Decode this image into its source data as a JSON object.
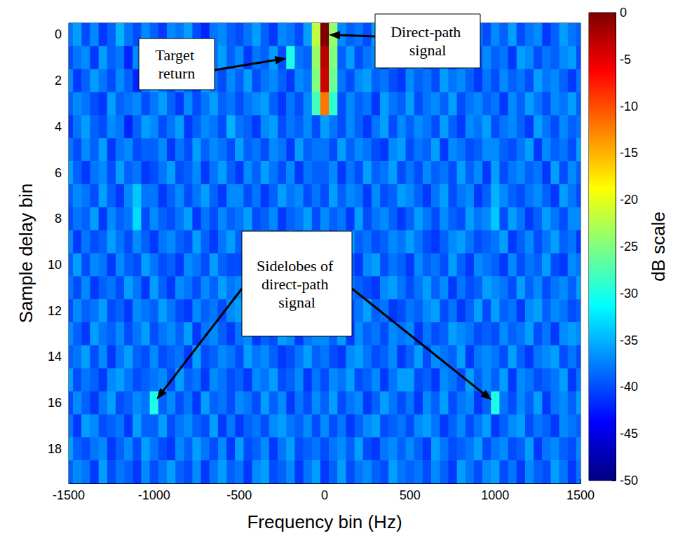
{
  "chart_data": {
    "type": "heatmap",
    "xlabel": "Frequency bin (Hz)",
    "ylabel": "Sample delay bin",
    "x": [
      -1500,
      -1450,
      -1400,
      -1350,
      -1300,
      -1250,
      -1200,
      -1150,
      -1100,
      -1050,
      -1000,
      -950,
      -900,
      -850,
      -800,
      -750,
      -700,
      -650,
      -600,
      -550,
      -500,
      -450,
      -400,
      -350,
      -300,
      -250,
      -200,
      -150,
      -100,
      -50,
      0,
      50,
      100,
      150,
      200,
      250,
      300,
      350,
      400,
      450,
      500,
      550,
      600,
      650,
      700,
      750,
      800,
      850,
      900,
      950,
      1000,
      1050,
      1100,
      1150,
      1200,
      1250,
      1300,
      1350,
      1400,
      1450,
      1500
    ],
    "y": [
      0,
      1,
      2,
      3,
      4,
      5,
      6,
      7,
      8,
      9,
      10,
      11,
      12,
      13,
      14,
      15,
      16,
      17,
      18,
      19
    ],
    "values": [
      [
        -38,
        -36,
        -40,
        -37,
        -41,
        -39,
        -35,
        -38,
        -40,
        -37,
        -39,
        -41,
        -37,
        -38,
        -36,
        -40,
        -42,
        -38,
        -37,
        -39,
        -40,
        -38,
        -36,
        -39,
        -41,
        -37,
        -38,
        -40,
        -36,
        -22,
        0,
        -24,
        -37,
        -39,
        -38,
        -40,
        -36,
        -41,
        -38,
        -37,
        -39,
        -37,
        -40,
        -36,
        -38,
        -41,
        -39,
        -37,
        -38,
        -40,
        -37,
        -39,
        -36,
        -40,
        -38,
        -37,
        -41,
        -39,
        -36,
        -38,
        -39
      ],
      [
        -40,
        -38,
        -37,
        -41,
        -36,
        -39,
        -38,
        -42,
        -37,
        -39,
        -38,
        -40,
        -36,
        -39,
        -41,
        -37,
        -40,
        -38,
        -36,
        -39,
        -37,
        -41,
        -38,
        -39,
        -36,
        -40,
        -30,
        -38,
        -39,
        -24,
        -3,
        -25,
        -39,
        -36,
        -40,
        -38,
        -37,
        -41,
        -36,
        -39,
        -38,
        -36,
        -40,
        -39,
        -37,
        -41,
        -38,
        -36,
        -40,
        -37,
        -39,
        -38,
        -41,
        -36,
        -37,
        -40,
        -38,
        -39,
        -37,
        -36,
        -40
      ],
      [
        -37,
        -41,
        -39,
        -36,
        -38,
        -40,
        -37,
        -39,
        -42,
        -38,
        -36,
        -38,
        -40,
        -37,
        -39,
        -41,
        -36,
        -38,
        -40,
        -37,
        -39,
        -36,
        -40,
        -38,
        -37,
        -39,
        -41,
        -37,
        -38,
        -25,
        -4,
        -26,
        -38,
        -40,
        -37,
        -36,
        -39,
        -38,
        -40,
        -41,
        -37,
        -39,
        -38,
        -40,
        -36,
        -38,
        -37,
        -39,
        -41,
        -38,
        -40,
        -37,
        -39,
        -38,
        -40,
        -36,
        -38,
        -37,
        -39,
        -41,
        -38
      ],
      [
        -39,
        -37,
        -38,
        -40,
        -41,
        -36,
        -39,
        -38,
        -37,
        -40,
        -38,
        -36,
        -39,
        -41,
        -37,
        -40,
        -38,
        -36,
        -39,
        -38,
        -40,
        -38,
        -37,
        -36,
        -39,
        -41,
        -38,
        -40,
        -37,
        -28,
        -12,
        -29,
        -40,
        -37,
        -39,
        -38,
        -41,
        -36,
        -38,
        -39,
        -36,
        -40,
        -38,
        -37,
        -39,
        -36,
        -40,
        -38,
        -37,
        -39,
        -38,
        -41,
        -37,
        -39,
        -36,
        -38,
        -40,
        -37,
        -38,
        -36,
        -39
      ],
      [
        -41,
        -38,
        -36,
        -39,
        -40,
        -37,
        -38,
        -42,
        -39,
        -36,
        -37,
        -40,
        -38,
        -36,
        -41,
        -39,
        -37,
        -38,
        -40,
        -35,
        -38,
        -39,
        -41,
        -37,
        -36,
        -40,
        -38,
        -39,
        -37,
        -40,
        -36,
        -38,
        -40,
        -37,
        -39,
        -41,
        -38,
        -36,
        -40,
        -37,
        -39,
        -37,
        -38,
        -40,
        -36,
        -39,
        -41,
        -37,
        -38,
        -36,
        -40,
        -38,
        -37,
        -39,
        -41,
        -36,
        -38,
        -40,
        -37,
        -39,
        -38
      ],
      [
        -38,
        -40,
        -37,
        -39,
        -36,
        -41,
        -38,
        -37,
        -40,
        -39,
        -39,
        -37,
        -41,
        -38,
        -40,
        -36,
        -39,
        -37,
        -38,
        -40,
        -36,
        -39,
        -38,
        -40,
        -37,
        -38,
        -41,
        -36,
        -39,
        -38,
        -38,
        -40,
        -36,
        -39,
        -37,
        -38,
        -40,
        -41,
        -37,
        -36,
        -40,
        -38,
        -39,
        -36,
        -41,
        -37,
        -38,
        -40,
        -39,
        -37,
        -37,
        -39,
        -40,
        -38,
        -36,
        -41,
        -37,
        -39,
        -38,
        -40,
        -36
      ],
      [
        -36,
        -39,
        -41,
        -38,
        -37,
        -40,
        -36,
        -39,
        -38,
        -41,
        -40,
        -38,
        -36,
        -40,
        -39,
        -37,
        -41,
        -38,
        -36,
        -39,
        -41,
        -37,
        -39,
        -36,
        -38,
        -40,
        -37,
        -41,
        -38,
        -39,
        -39,
        -37,
        -41,
        -38,
        -40,
        -36,
        -39,
        -38,
        -36,
        -40,
        -38,
        -40,
        -37,
        -39,
        -38,
        -40,
        -36,
        -39,
        -37,
        -41,
        -36,
        -40,
        -38,
        -37,
        -39,
        -38,
        -41,
        -36,
        -40,
        -37,
        -39
      ],
      [
        -39,
        -37,
        -38,
        -40,
        -36,
        -39,
        -41,
        -37,
        -34,
        -38,
        -38,
        -41,
        -39,
        -37,
        -40,
        -38,
        -36,
        -39,
        -41,
        -37,
        -37,
        -40,
        -38,
        -41,
        -39,
        -36,
        -38,
        -37,
        -40,
        -38,
        -40,
        -36,
        -39,
        -37,
        -38,
        -41,
        -37,
        -40,
        -39,
        -36,
        -37,
        -39,
        -41,
        -38,
        -36,
        -40,
        -38,
        -37,
        -41,
        -39,
        -35,
        -37,
        -39,
        -40,
        -38,
        -37,
        -39,
        -41,
        -36,
        -38,
        -40
      ],
      [
        -40,
        -38,
        -39,
        -36,
        -41,
        -37,
        -39,
        -38,
        -33,
        -40,
        -37,
        -39,
        -40,
        -38,
        -36,
        -41,
        -38,
        -40,
        -37,
        -39,
        -38,
        -36,
        -40,
        -39,
        -37,
        -41,
        -39,
        -38,
        -36,
        -40,
        -37,
        -39,
        -38,
        -41,
        -36,
        -40,
        -38,
        -37,
        -39,
        -41,
        -39,
        -36,
        -38,
        -40,
        -37,
        -39,
        -40,
        -36,
        -38,
        -37,
        -34,
        -40,
        -36,
        -38,
        -41,
        -39,
        -36,
        -38,
        -40,
        -37,
        -37
      ],
      [
        -37,
        -41,
        -38,
        -40,
        -39,
        -36,
        -38,
        -40,
        -37,
        -39,
        -41,
        -38,
        -37,
        -39,
        -40,
        -36,
        -39,
        -41,
        -38,
        -36,
        -39,
        -40,
        -37,
        -38,
        -41,
        -39,
        -36,
        -40,
        -39,
        -37,
        -38,
        -41,
        -37,
        -36,
        -39,
        -38,
        -40,
        -39,
        -37,
        -38,
        -36,
        -38,
        -40,
        -41,
        -39,
        -37,
        -36,
        -38,
        -40,
        -39,
        -38,
        -36,
        -41,
        -39,
        -37,
        -40,
        -38,
        -36,
        -39,
        -38,
        -41
      ],
      [
        -39,
        -36,
        -40,
        -37,
        -38,
        -41,
        -37,
        -39,
        -40,
        -36,
        -38,
        -40,
        -39,
        -41,
        -37,
        -38,
        -40,
        -36,
        -39,
        -40,
        -40,
        -38,
        -36,
        -37,
        -40,
        -38,
        -39,
        -37,
        -41,
        -36,
        -39,
        -38,
        -40,
        -39,
        -41,
        -37,
        -36,
        -40,
        -38,
        -39,
        -41,
        -37,
        -39,
        -38,
        -40,
        -36,
        -39,
        -41,
        -37,
        -38,
        -39,
        -41,
        -37,
        -40,
        -38,
        -39,
        -36,
        -40,
        -41,
        -37,
        -38
      ],
      [
        -38,
        -40,
        -37,
        -41,
        -39,
        -38,
        -40,
        -36,
        -38,
        -41,
        -36,
        -39,
        -41,
        -37,
        -38,
        -40,
        -37,
        -39,
        -36,
        -38,
        -37,
        -41,
        -39,
        -40,
        -36,
        -37,
        -40,
        -38,
        -39,
        -41,
        -36,
        -40,
        -37,
        -38,
        -39,
        -40,
        -41,
        -37,
        -36,
        -38,
        -40,
        -38,
        -36,
        -39,
        -37,
        -41,
        -38,
        -40,
        -39,
        -36,
        -37,
        -38,
        -40,
        -36,
        -39,
        -37,
        -40,
        -38,
        -37,
        -39,
        -36
      ],
      [
        -40,
        -37,
        -39,
        -38,
        -36,
        -40,
        -39,
        -41,
        -37,
        -38,
        -39,
        -36,
        -38,
        -40,
        -41,
        -37,
        -39,
        -38,
        -40,
        -37,
        -36,
        -39,
        -40,
        -38,
        -37,
        -39,
        -38,
        -36,
        -40,
        -39,
        -41,
        -37,
        -39,
        -40,
        -38,
        -36,
        -39,
        -38,
        -41,
        -40,
        -38,
        -39,
        -37,
        -36,
        -40,
        -38,
        -41,
        -39,
        -36,
        -40,
        -36,
        -39,
        -38,
        -41,
        -37,
        -36,
        -39,
        -37,
        -38,
        -40,
        -39
      ],
      [
        -37,
        -39,
        -41,
        -36,
        -38,
        -39,
        -37,
        -40,
        -38,
        -36,
        -40,
        -38,
        -37,
        -39,
        -36,
        -41,
        -38,
        -37,
        -39,
        -41,
        -38,
        -37,
        -41,
        -39,
        -40,
        -36,
        -37,
        -41,
        -38,
        -37,
        -37,
        -39,
        -36,
        -41,
        -37,
        -39,
        -38,
        -40,
        -37,
        -38,
        -37,
        -41,
        -38,
        -40,
        -39,
        -36,
        -37,
        -38,
        -40,
        -39,
        -40,
        -37,
        -39,
        -38,
        -36,
        -40,
        -38,
        -41,
        -37,
        -36,
        -37
      ],
      [
        -39,
        -38,
        -36,
        -40,
        -37,
        -41,
        -38,
        -36,
        -39,
        -40,
        -37,
        -40,
        -39,
        -38,
        -41,
        -36,
        -40,
        -39,
        -37,
        -38,
        -40,
        -36,
        -38,
        -37,
        -39,
        -41,
        -40,
        -38,
        -36,
        -39,
        -38,
        -40,
        -41,
        -37,
        -36,
        -38,
        -40,
        -39,
        -37,
        -41,
        -39,
        -36,
        -40,
        -37,
        -38,
        -39,
        -36,
        -41,
        -38,
        -37,
        -38,
        -40,
        -36,
        -39,
        -41,
        -38,
        -37,
        -36,
        -40,
        -38,
        -40
      ],
      [
        -36,
        -40,
        -38,
        -39,
        -41,
        -37,
        -36,
        -38,
        -40,
        -39,
        -38,
        -37,
        -40,
        -36,
        -39,
        -38,
        -41,
        -37,
        -38,
        -40,
        -39,
        -41,
        -37,
        -38,
        -36,
        -40,
        -39,
        -37,
        -41,
        -38,
        -40,
        -37,
        -38,
        -36,
        -40,
        -39,
        -37,
        -41,
        -38,
        -36,
        -36,
        -40,
        -39,
        -41,
        -37,
        -38,
        -40,
        -36,
        -39,
        -37,
        -39,
        -36,
        -41,
        -37,
        -38,
        -40,
        -39,
        -38,
        -36,
        -41,
        -38
      ],
      [
        -40,
        -37,
        -39,
        -41,
        -38,
        -36,
        -40,
        -39,
        -37,
        -38,
        -30,
        -39,
        -37,
        -40,
        -38,
        -41,
        -36,
        -39,
        -38,
        -40,
        -37,
        -38,
        -40,
        -36,
        -39,
        -37,
        -41,
        -38,
        -40,
        -37,
        -39,
        -36,
        -40,
        -38,
        -37,
        -41,
        -39,
        -36,
        -38,
        -40,
        -38,
        -41,
        -37,
        -39,
        -36,
        -40,
        -38,
        -37,
        -41,
        -39,
        -30,
        -38,
        -40,
        -37,
        -39,
        -36,
        -41,
        -38,
        -37,
        -39,
        -36
      ],
      [
        -38,
        -41,
        -36,
        -37,
        -40,
        -39,
        -38,
        -41,
        -36,
        -39,
        -39,
        -36,
        -40,
        -38,
        -37,
        -39,
        -40,
        -36,
        -41,
        -38,
        -41,
        -39,
        -38,
        -40,
        -37,
        -36,
        -38,
        -39,
        -37,
        -40,
        -37,
        -40,
        -38,
        -41,
        -39,
        -37,
        -36,
        -40,
        -39,
        -38,
        -40,
        -37,
        -36,
        -38,
        -41,
        -39,
        -37,
        -40,
        -38,
        -36,
        -41,
        -39,
        -37,
        -36,
        -40,
        -38,
        -39,
        -41,
        -37,
        -38,
        -39
      ],
      [
        -36,
        -39,
        -40,
        -38,
        -37,
        -41,
        -39,
        -37,
        -40,
        -36,
        -38,
        -40,
        -41,
        -37,
        -39,
        -36,
        -38,
        -40,
        -37,
        -41,
        -36,
        -40,
        -39,
        -37,
        -41,
        -38,
        -36,
        -40,
        -39,
        -38,
        -40,
        -38,
        -37,
        -39,
        -36,
        -40,
        -41,
        -38,
        -37,
        -39,
        -37,
        -39,
        -41,
        -36,
        -38,
        -40,
        -39,
        -38,
        -36,
        -40,
        -38,
        -37,
        -40,
        -39,
        -36,
        -41,
        -38,
        -37,
        -39,
        -40,
        -37
      ],
      [
        -39,
        -37,
        -38,
        -41,
        -36,
        -40,
        -38,
        -39,
        -41,
        -37,
        -40,
        -38,
        -36,
        -39,
        -40,
        -37,
        -41,
        -38,
        -36,
        -39,
        -38,
        -41,
        -37,
        -36,
        -40,
        -39,
        -37,
        -41,
        -38,
        -36,
        -41,
        -39,
        -36,
        -40,
        -38,
        -37,
        -39,
        -40,
        -36,
        -38,
        -39,
        -38,
        -40,
        -37,
        -39,
        -41,
        -36,
        -38,
        -40,
        -37,
        -36,
        -40,
        -38,
        -41,
        -37,
        -39,
        -40,
        -36,
        -38,
        -41,
        -38
      ]
    ],
    "xlim": [
      -1500,
      1500
    ],
    "xticks": [
      -1500,
      -1000,
      -500,
      0,
      500,
      1000,
      1500
    ],
    "ylim": [
      -0.5,
      19.5
    ],
    "yticks": [
      0,
      2,
      4,
      6,
      8,
      10,
      12,
      14,
      16,
      18
    ],
    "grid": false,
    "colorbar": {
      "label": "dB scale",
      "range": [
        -50,
        0
      ],
      "ticks": [
        -50,
        -45,
        -40,
        -35,
        -30,
        -25,
        -20,
        -15,
        -10,
        -5,
        0
      ]
    },
    "annotations": [
      {
        "text": "Target return",
        "points": [
          [
            -200,
            1
          ]
        ]
      },
      {
        "text": "Direct-path signal",
        "points": [
          [
            0,
            0
          ]
        ]
      },
      {
        "text": "Sidelobes of direct-path signal",
        "points": [
          [
            -1000,
            16
          ],
          [
            1000,
            16
          ]
        ]
      }
    ]
  }
}
